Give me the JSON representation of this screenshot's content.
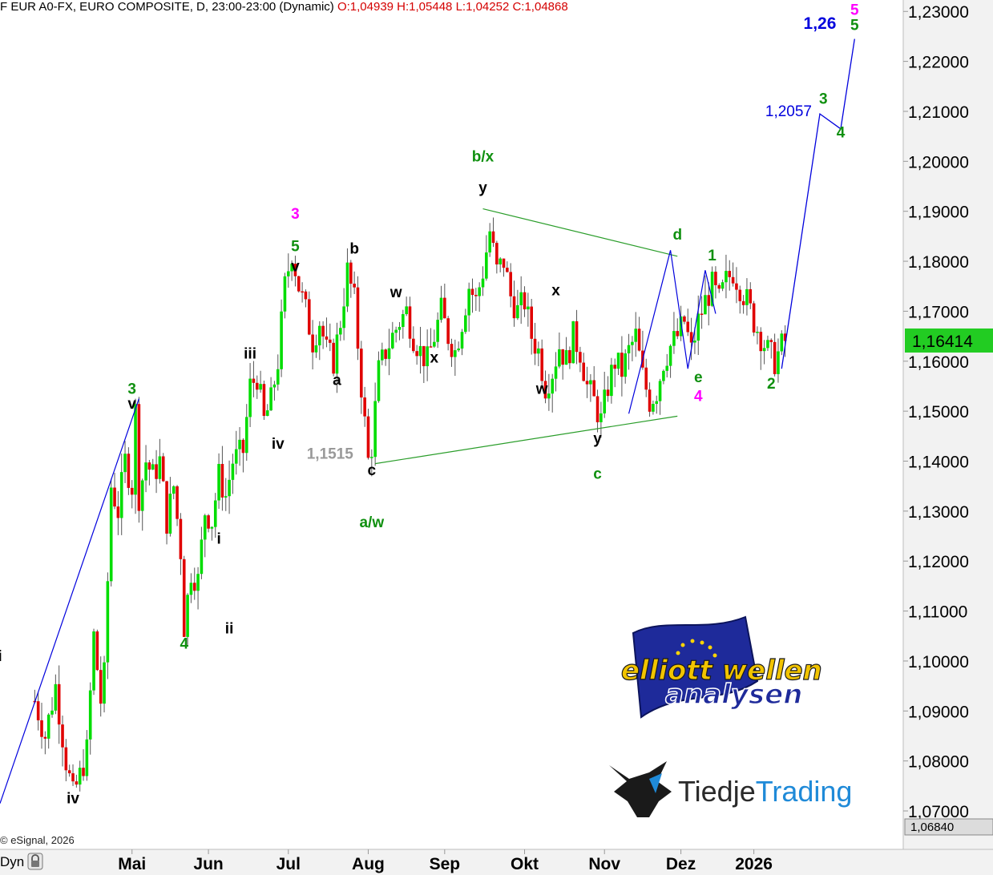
{
  "header": {
    "symbol_text": "F EUR A0-FX, EURO COMPOSITE, D, 23:00-23:00 (Dynamic)",
    "ohlc_text": "O:1,04939 H:1,05448 L:1,04252 C:1,04868"
  },
  "footer": {
    "copyright": "© eSignal, 2026",
    "dyn_label": "Dyn",
    "lock_icon": "lock-icon"
  },
  "colors": {
    "up_candle": "#00dd00",
    "down_candle": "#e00000",
    "wick": "#555555",
    "green_label": "#109010",
    "magenta_label": "#ff00ff",
    "blue_projection": "#0000dd",
    "triangle_line": "#2a9d2a",
    "price_tag_bg": "#22cc22",
    "axis_bg": "#f2f2f2"
  },
  "chart_data": {
    "type": "candlestick",
    "title": "EUR A0-FX, EURO COMPOSITE, D",
    "y_axis": {
      "position": "right",
      "ylim": [
        1.0684,
        1.2302
      ],
      "ticks": [
        "1,23000",
        "1,22000",
        "1,21000",
        "1,20000",
        "1,19000",
        "1,18000",
        "1,17000",
        "1,16000",
        "1,15000",
        "1,14000",
        "1,13000",
        "1,12000",
        "1,11000",
        "1,10000",
        "1,09000",
        "1,08000",
        "1,07000"
      ],
      "tick_values": [
        1.23,
        1.22,
        1.21,
        1.2,
        1.19,
        1.18,
        1.17,
        1.16,
        1.15,
        1.14,
        1.13,
        1.12,
        1.11,
        1.1,
        1.09,
        1.08,
        1.07
      ],
      "current_price": 1.16414,
      "current_price_label": "1,16414",
      "low_marker": 1.0684,
      "low_marker_label": "1,06840"
    },
    "x_axis": {
      "labels": [
        "Mai",
        "Jun",
        "Jul",
        "Aug",
        "Sep",
        "Okt",
        "Nov",
        "Dez",
        "2026"
      ],
      "label_days": [
        28,
        50,
        73,
        96,
        118,
        141,
        164,
        186,
        207
      ]
    },
    "x_domain_days": [
      -10,
      250
    ],
    "price_path": [
      [
        0,
        1.092
      ],
      [
        3,
        1.085
      ],
      [
        6,
        1.095
      ],
      [
        9,
        1.08
      ],
      [
        11,
        1.073
      ],
      [
        13,
        1.077
      ],
      [
        15,
        1.082
      ],
      [
        17,
        1.105
      ],
      [
        19,
        1.092
      ],
      [
        20,
        1.097
      ],
      [
        22,
        1.135
      ],
      [
        24,
        1.13
      ],
      [
        26,
        1.14
      ],
      [
        28,
        1.135
      ],
      [
        29,
        1.15
      ],
      [
        30,
        1.133
      ],
      [
        32,
        1.14
      ],
      [
        34,
        1.137
      ],
      [
        36,
        1.14
      ],
      [
        38,
        1.128
      ],
      [
        40,
        1.135
      ],
      [
        42,
        1.122
      ],
      [
        43,
        1.107
      ],
      [
        45,
        1.118
      ],
      [
        47,
        1.116
      ],
      [
        49,
        1.13
      ],
      [
        51,
        1.128
      ],
      [
        53,
        1.137
      ],
      [
        55,
        1.133
      ],
      [
        57,
        1.14
      ],
      [
        60,
        1.142
      ],
      [
        62,
        1.155
      ],
      [
        64,
        1.157
      ],
      [
        66,
        1.148
      ],
      [
        68,
        1.152
      ],
      [
        70,
        1.16
      ],
      [
        72,
        1.175
      ],
      [
        74,
        1.182
      ],
      [
        76,
        1.175
      ],
      [
        78,
        1.17
      ],
      [
        80,
        1.164
      ],
      [
        82,
        1.168
      ],
      [
        84,
        1.162
      ],
      [
        86,
        1.16
      ],
      [
        88,
        1.168
      ],
      [
        90,
        1.178
      ],
      [
        92,
        1.172
      ],
      [
        94,
        1.155
      ],
      [
        96,
        1.14
      ],
      [
        97,
        1.143
      ],
      [
        99,
        1.158
      ],
      [
        101,
        1.162
      ],
      [
        103,
        1.165
      ],
      [
        105,
        1.168
      ],
      [
        107,
        1.17
      ],
      [
        109,
        1.165
      ],
      [
        111,
        1.162
      ],
      [
        113,
        1.16
      ],
      [
        115,
        1.165
      ],
      [
        117,
        1.17
      ],
      [
        119,
        1.165
      ],
      [
        121,
        1.162
      ],
      [
        123,
        1.168
      ],
      [
        125,
        1.175
      ],
      [
        127,
        1.172
      ],
      [
        129,
        1.178
      ],
      [
        131,
        1.186
      ],
      [
        133,
        1.178
      ],
      [
        135,
        1.18
      ],
      [
        137,
        1.173
      ],
      [
        139,
        1.17
      ],
      [
        141,
        1.172
      ],
      [
        143,
        1.165
      ],
      [
        145,
        1.162
      ],
      [
        147,
        1.155
      ],
      [
        149,
        1.158
      ],
      [
        151,
        1.163
      ],
      [
        153,
        1.16
      ],
      [
        155,
        1.165
      ],
      [
        157,
        1.162
      ],
      [
        159,
        1.155
      ],
      [
        161,
        1.152
      ],
      [
        163,
        1.148
      ],
      [
        165,
        1.155
      ],
      [
        167,
        1.16
      ],
      [
        169,
        1.158
      ],
      [
        171,
        1.162
      ],
      [
        173,
        1.165
      ],
      [
        175,
        1.157
      ],
      [
        177,
        1.152
      ],
      [
        179,
        1.154
      ],
      [
        181,
        1.16
      ],
      [
        183,
        1.163
      ],
      [
        185,
        1.165
      ],
      [
        187,
        1.168
      ],
      [
        189,
        1.162
      ],
      [
        191,
        1.168
      ],
      [
        193,
        1.172
      ],
      [
        195,
        1.175
      ],
      [
        197,
        1.172
      ],
      [
        199,
        1.176
      ],
      [
        201,
        1.178
      ],
      [
        203,
        1.175
      ],
      [
        205,
        1.172
      ],
      [
        207,
        1.168
      ],
      [
        209,
        1.165
      ],
      [
        211,
        1.162
      ],
      [
        213,
        1.16
      ],
      [
        215,
        1.163
      ],
      [
        216,
        1.164
      ]
    ],
    "wave_labels": [
      {
        "text": "i",
        "day": -10,
        "price": 1.1,
        "color": "black"
      },
      {
        "text": "iv",
        "day": 11,
        "price": 1.0715,
        "color": "black"
      },
      {
        "text": "3",
        "day": 28,
        "price": 1.1535,
        "color": "green"
      },
      {
        "text": "v",
        "day": 28,
        "price": 1.1505,
        "color": "black"
      },
      {
        "text": "i",
        "day": 53,
        "price": 1.1235,
        "color": "black"
      },
      {
        "text": "ii",
        "day": 56,
        "price": 1.1055,
        "color": "black"
      },
      {
        "text": "4",
        "day": 43,
        "price": 1.1025,
        "color": "green"
      },
      {
        "text": "iii",
        "day": 62,
        "price": 1.1605,
        "color": "black"
      },
      {
        "text": "iv",
        "day": 70,
        "price": 1.1425,
        "color": "black"
      },
      {
        "text": "3",
        "day": 75,
        "price": 1.1885,
        "color": "magenta"
      },
      {
        "text": "5",
        "day": 75,
        "price": 1.182,
        "color": "green"
      },
      {
        "text": "v",
        "day": 75,
        "price": 1.178,
        "color": "black"
      },
      {
        "text": "b",
        "day": 92,
        "price": 1.1815,
        "color": "black"
      },
      {
        "text": "a",
        "day": 87,
        "price": 1.1552,
        "color": "black"
      },
      {
        "text": "w",
        "day": 104,
        "price": 1.1728,
        "color": "black"
      },
      {
        "text": "x",
        "day": 115,
        "price": 1.1597,
        "color": "black"
      },
      {
        "text": "c",
        "day": 97,
        "price": 1.1372,
        "color": "black"
      },
      {
        "text": "a/w",
        "day": 97,
        "price": 1.1268,
        "color": "green"
      },
      {
        "text": "b/x",
        "day": 129,
        "price": 1.2,
        "color": "green"
      },
      {
        "text": "y",
        "day": 129,
        "price": 1.1937,
        "color": "black"
      },
      {
        "text": "x",
        "day": 150,
        "price": 1.1732,
        "color": "black"
      },
      {
        "text": "w",
        "day": 146,
        "price": 1.1535,
        "color": "black"
      },
      {
        "text": "y",
        "day": 162,
        "price": 1.1435,
        "color": "black"
      },
      {
        "text": "c",
        "day": 162,
        "price": 1.1365,
        "color": "green"
      },
      {
        "text": "d",
        "day": 185,
        "price": 1.1843,
        "color": "green"
      },
      {
        "text": "1",
        "day": 195,
        "price": 1.1802,
        "color": "green"
      },
      {
        "text": "e",
        "day": 191,
        "price": 1.1558,
        "color": "green"
      },
      {
        "text": "4",
        "day": 191,
        "price": 1.152,
        "color": "magenta"
      },
      {
        "text": "2",
        "day": 212,
        "price": 1.1545,
        "color": "green"
      },
      {
        "text": "3",
        "day": 227,
        "price": 1.2115,
        "color": "green"
      },
      {
        "text": "4",
        "day": 232,
        "price": 1.2048,
        "color": "green"
      },
      {
        "text": "5",
        "day": 236,
        "price": 1.2293,
        "color": "magenta"
      },
      {
        "text": "5",
        "day": 236,
        "price": 1.2263,
        "color": "green"
      }
    ],
    "annotations": [
      {
        "text": "1,1515",
        "day": 85,
        "price": 1.1405,
        "color": "#999999"
      },
      {
        "text": "1,2057",
        "day": 217,
        "price": 1.209,
        "color": "#0000dd"
      },
      {
        "text": "1,26",
        "day": 226,
        "price": 1.2265,
        "color": "#0000dd"
      }
    ],
    "triangle_lines": [
      [
        [
          98,
          1.1395
        ],
        [
          185,
          1.149
        ]
      ],
      [
        [
          129,
          1.1905
        ],
        [
          185,
          1.181
        ]
      ]
    ],
    "projection_path": [
      [
        215,
        1.1585
      ],
      [
        226,
        1.2095
      ],
      [
        232,
        1.2065
      ],
      [
        236,
        1.2245
      ]
    ],
    "wave_sketches": [
      [
        [
          -10,
          1.0715
        ],
        [
          30,
          1.1525
        ]
      ],
      [
        [
          171,
          1.1495
        ],
        [
          183,
          1.1822
        ],
        [
          188,
          1.1585
        ],
        [
          193,
          1.1782
        ],
        [
          196,
          1.1695
        ]
      ]
    ]
  },
  "logos": {
    "elliott_line1": "elliott wellen",
    "elliott_line2": "analysen",
    "tiedje_part1": "Tiedje",
    "tiedje_part2": "Trading"
  }
}
